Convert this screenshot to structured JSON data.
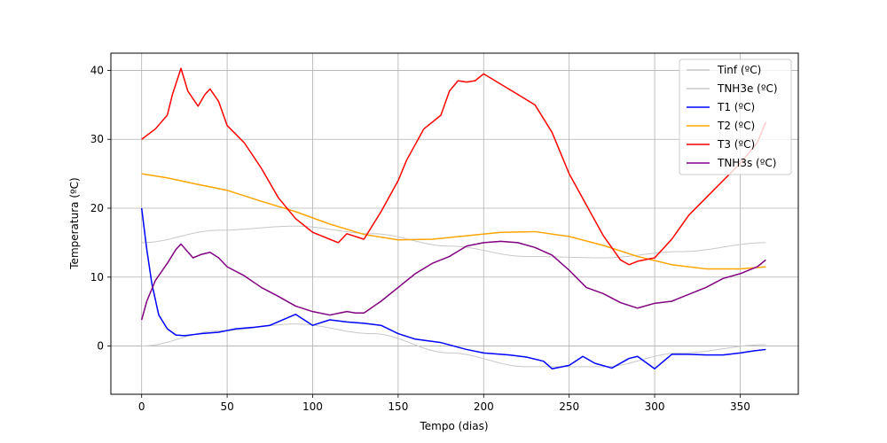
{
  "chart_data": {
    "type": "line",
    "xlabel": "Tempo (dias)",
    "ylabel": "Temperatura (ºC)",
    "xlim": [
      -18,
      384
    ],
    "ylim": [
      -7,
      42.5
    ],
    "xticks": [
      0,
      50,
      100,
      150,
      200,
      250,
      300,
      350
    ],
    "yticks": [
      0,
      10,
      20,
      30,
      40
    ],
    "grid": true,
    "legend_position": "top-right",
    "series": [
      {
        "name": "Tinf (ºC)",
        "color": "#c8c8c8",
        "style": "oscillating",
        "description_points": "mean curve with daily oscillation amplitude ~2",
        "x": [
          0,
          45,
          90,
          135,
          180,
          225,
          270,
          315,
          365
        ],
        "center": [
          0,
          2.2,
          3.2,
          1.8,
          -1.0,
          -3.0,
          -3.0,
          -1.0,
          0.2
        ],
        "amplitude": 2
      },
      {
        "name": "TNH3e (ºC)",
        "color": "#c8c8c8",
        "style": "oscillating",
        "x": [
          0,
          45,
          90,
          135,
          180,
          225,
          270,
          315,
          365
        ],
        "center": [
          15,
          16.8,
          17.4,
          16.3,
          14.5,
          13.0,
          12.8,
          13.7,
          15.0
        ],
        "amplitude": 2
      },
      {
        "name": "T1 (ºC)",
        "color": "#0000ff",
        "x": [
          0,
          3,
          6,
          10,
          15,
          20,
          25,
          35,
          45,
          55,
          65,
          75,
          90,
          100,
          110,
          120,
          130,
          140,
          150,
          160,
          175,
          190,
          200,
          215,
          225,
          235,
          240,
          250,
          258,
          265,
          275,
          285,
          290,
          300,
          310,
          320,
          330,
          340,
          350,
          358,
          365
        ],
        "y": [
          20,
          14,
          9,
          4.5,
          2.5,
          1.6,
          1.5,
          1.8,
          2.0,
          2.5,
          2.7,
          3.0,
          4.6,
          3.0,
          3.8,
          3.5,
          3.3,
          3.0,
          1.8,
          1.0,
          0.5,
          -0.5,
          -1.0,
          -1.3,
          -1.6,
          -2.2,
          -3.3,
          -2.8,
          -1.5,
          -2.5,
          -3.2,
          -1.8,
          -1.5,
          -3.3,
          -1.2,
          -1.2,
          -1.3,
          -1.3,
          -1.0,
          -0.7,
          -0.5
        ]
      },
      {
        "name": "T2 (ºC)",
        "color": "#ffa500",
        "x": [
          0,
          15,
          30,
          50,
          70,
          90,
          110,
          130,
          150,
          170,
          190,
          210,
          230,
          250,
          270,
          290,
          310,
          330,
          350,
          365
        ],
        "y": [
          25,
          24.4,
          23.6,
          22.6,
          21.0,
          19.5,
          17.7,
          16.2,
          15.4,
          15.5,
          16.0,
          16.5,
          16.6,
          15.9,
          14.6,
          13.0,
          11.8,
          11.2,
          11.2,
          11.5
        ]
      },
      {
        "name": "T3 (ºC)",
        "color": "#ff0000",
        "x": [
          0,
          8,
          15,
          18,
          23,
          27,
          33,
          37,
          40,
          45,
          50,
          60,
          70,
          80,
          90,
          100,
          110,
          115,
          120,
          130,
          140,
          150,
          155,
          165,
          175,
          180,
          185,
          190,
          195,
          200,
          210,
          220,
          230,
          240,
          250,
          260,
          270,
          280,
          285,
          290,
          300,
          310,
          320,
          330,
          340,
          350,
          360,
          365
        ],
        "y": [
          30,
          31.5,
          33.5,
          36.5,
          40.3,
          37,
          34.8,
          36.5,
          37.3,
          35.5,
          32,
          29.5,
          25.8,
          21.5,
          18.5,
          16.5,
          15.5,
          15.0,
          16.3,
          15.5,
          19.5,
          24,
          27,
          31.5,
          33.5,
          37,
          38.5,
          38.3,
          38.5,
          39.5,
          38,
          36.5,
          35,
          31,
          25,
          20.5,
          16,
          12.5,
          11.8,
          12.3,
          12.8,
          15.5,
          19,
          21.5,
          24,
          26.5,
          29.5,
          32.5
        ]
      },
      {
        "name": "TNH3s (ºC)",
        "color": "#800080",
        "x": [
          0,
          3,
          8,
          15,
          20,
          23,
          30,
          35,
          40,
          45,
          50,
          60,
          70,
          80,
          90,
          100,
          110,
          120,
          125,
          130,
          140,
          150,
          160,
          170,
          180,
          190,
          200,
          210,
          220,
          230,
          240,
          250,
          260,
          270,
          280,
          290,
          300,
          310,
          320,
          330,
          340,
          350,
          360,
          365
        ],
        "y": [
          3.8,
          6.5,
          9.5,
          12,
          14,
          14.8,
          12.8,
          13.3,
          13.6,
          12.8,
          11.5,
          10.2,
          8.5,
          7.2,
          5.8,
          5.0,
          4.5,
          5.0,
          4.8,
          4.8,
          6.5,
          8.5,
          10.5,
          12,
          13,
          14.5,
          15,
          15.2,
          15,
          14.3,
          13.2,
          11,
          8.5,
          7.6,
          6.3,
          5.5,
          6.2,
          6.5,
          7.5,
          8.5,
          9.8,
          10.5,
          11.5,
          12.5
        ]
      }
    ]
  }
}
